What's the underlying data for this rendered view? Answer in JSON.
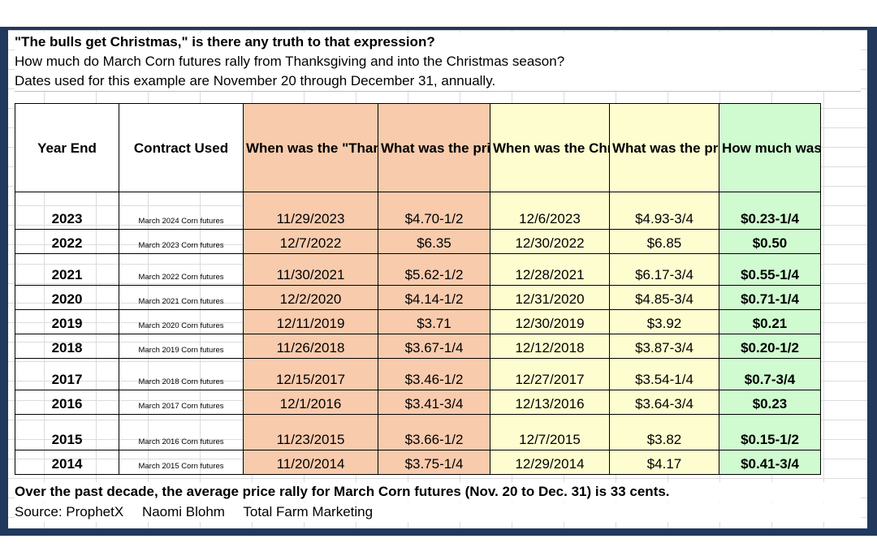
{
  "header": {
    "title": "\"The bulls get Christmas,\" is there any truth to that expression?",
    "line2": "How much do March Corn futures rally from Thanksgiving and into the Christmas season?",
    "line3": "Dates used for this example are November 20 through December 31, annually."
  },
  "columns": {
    "year": "Year End",
    "contract": "Contract Used",
    "low_date": "When was the \"Thanksgiving Low\"?",
    "low_price": "What was the price of the \"Thanksgiving low\"?",
    "high_date": "When was the Christmas \"price high\"?",
    "high_price": "What was the price of the Christmas \"price high\"?",
    "rally": "How much was the price rally?"
  },
  "rows": [
    {
      "year": "2023",
      "contract": "March 2024 Corn futures",
      "low_date": "11/29/2023",
      "low_price": "$4.70-1/2",
      "high_date": "12/6/2023",
      "high_price": "$4.93-3/4",
      "rally": "$0.23-1/4"
    },
    {
      "year": "2022",
      "contract": "March 2023 Corn futures",
      "low_date": "12/7/2022",
      "low_price": "$6.35",
      "high_date": "12/30/2022",
      "high_price": "$6.85",
      "rally": "$0.50"
    },
    {
      "year": "2021",
      "contract": "March 2022 Corn futures",
      "low_date": "11/30/2021",
      "low_price": "$5.62-1/2",
      "high_date": "12/28/2021",
      "high_price": "$6.17-3/4",
      "rally": "$0.55-1/4"
    },
    {
      "year": "2020",
      "contract": "March 2021 Corn futures",
      "low_date": "12/2/2020",
      "low_price": "$4.14-1/2",
      "high_date": "12/31/2020",
      "high_price": "$4.85-3/4",
      "rally": "$0.71-1/4"
    },
    {
      "year": "2019",
      "contract": "March 2020 Corn futures",
      "low_date": "12/11/2019",
      "low_price": "$3.71",
      "high_date": "12/30/2019",
      "high_price": "$3.92",
      "rally": "$0.21"
    },
    {
      "year": "2018",
      "contract": "March 2019 Corn futures",
      "low_date": "11/26/2018",
      "low_price": "$3.67-1/4",
      "high_date": "12/12/2018",
      "high_price": "$3.87-3/4",
      "rally": "$0.20-1/2"
    },
    {
      "year": "2017",
      "contract": "March 2018 Corn futures",
      "low_date": "12/15/2017",
      "low_price": "$3.46-1/2",
      "high_date": "12/27/2017",
      "high_price": "$3.54-1/4",
      "rally": "$0.7-3/4"
    },
    {
      "year": "2016",
      "contract": "March 2017 Corn futures",
      "low_date": "12/1/2016",
      "low_price": "$3.41-3/4",
      "high_date": "12/13/2016",
      "high_price": "$3.64-3/4",
      "rally": "$0.23"
    },
    {
      "year": "2015",
      "contract": "March 2016 Corn futures",
      "low_date": "11/23/2015",
      "low_price": "$3.66-1/2",
      "high_date": "12/7/2015",
      "high_price": "$3.82",
      "rally": "$0.15-1/2"
    },
    {
      "year": "2014",
      "contract": "March 2015 Corn futures",
      "low_date": "11/20/2014",
      "low_price": "$3.75-1/4",
      "high_date": "12/29/2014",
      "high_price": "$4.17",
      "rally": "$0.41-3/4"
    }
  ],
  "footer": {
    "summary": "Over the past decade, the average price rally for March  Corn futures (Nov. 20 to Dec. 31) is 33 cents.",
    "source": "Source: ProphetX",
    "author": "Naomi Blohm",
    "company": "Total Farm Marketing"
  },
  "colors": {
    "frame": "#20395d",
    "orange_columns": "#f8cbad",
    "yellow_columns": "#fefdd0",
    "green_column": "#d0fbd0"
  }
}
